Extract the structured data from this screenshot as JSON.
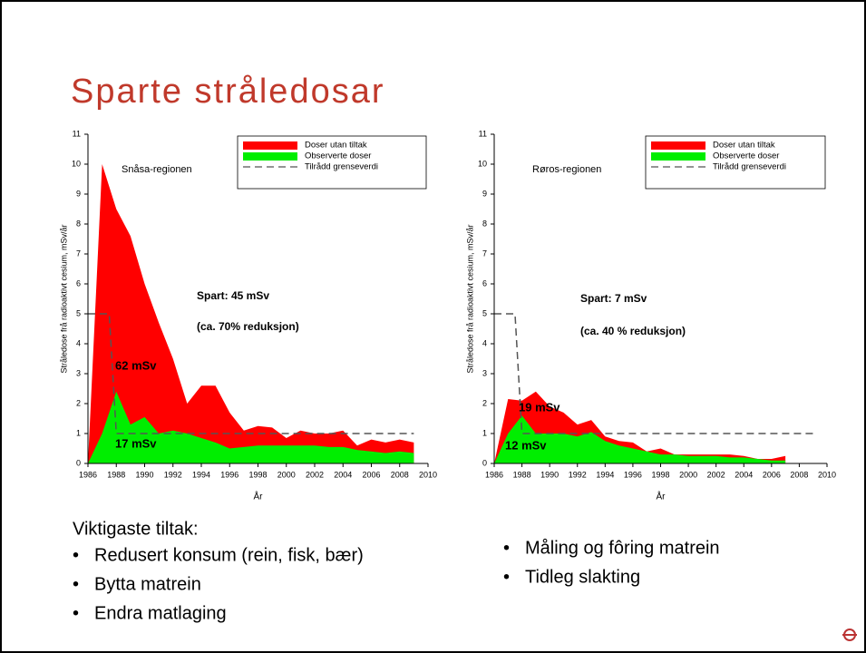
{
  "title": "Sparte stråledosar",
  "chart_data": [
    {
      "type": "area",
      "region": "Snåsa-regionen",
      "xlabel": "År",
      "ylabel": "Stråledose frå radioaktivt cesium, mSv/år",
      "x": [
        1986,
        1987,
        1988,
        1989,
        1990,
        1991,
        1992,
        1993,
        1994,
        1995,
        1996,
        1997,
        1998,
        1999,
        2000,
        2001,
        2002,
        2003,
        2004,
        2005,
        2006,
        2007,
        2008,
        2009
      ],
      "series": [
        {
          "name": "Doser utan tiltak",
          "color": "#ff0000",
          "style": "area",
          "values": [
            0,
            10,
            8.5,
            7.6,
            6,
            4.7,
            3.5,
            2.0,
            2.6,
            2.6,
            1.7,
            1.1,
            1.25,
            1.2,
            0.85,
            1.1,
            1.0,
            1.0,
            1.1,
            0.6,
            0.8,
            0.7,
            0.8,
            0.7
          ]
        },
        {
          "name": "Observerte doser",
          "color": "#00ee00",
          "style": "area",
          "values": [
            0,
            1.0,
            2.4,
            1.3,
            1.55,
            1.0,
            1.1,
            1.0,
            0.85,
            0.7,
            0.5,
            0.55,
            0.6,
            0.6,
            0.6,
            0.6,
            0.6,
            0.55,
            0.55,
            0.45,
            0.4,
            0.35,
            0.4,
            0.35
          ]
        },
        {
          "name": "Tilrådd grenseverdi",
          "color": "#555555",
          "style": "dashed",
          "x": [
            1986,
            1987.5,
            1988,
            2009
          ],
          "values": [
            5,
            5,
            1,
            1
          ]
        }
      ],
      "annotations": [
        "Spart: 45 mSv",
        "(ca. 70% reduksjon)",
        "62 mSv",
        "17 mSv"
      ],
      "xlim": [
        1986,
        2010
      ],
      "xticks": [
        1986,
        1988,
        1990,
        1992,
        1994,
        1996,
        1998,
        2000,
        2002,
        2004,
        2006,
        2008,
        2010
      ],
      "ylim": [
        0,
        11
      ],
      "yticks": [
        0,
        1,
        2,
        3,
        4,
        5,
        6,
        7,
        8,
        9,
        10,
        11
      ],
      "legend": "upper right"
    },
    {
      "type": "area",
      "region": "Røros-regionen",
      "xlabel": "År",
      "ylabel": "Stråledose frå radioaktivt cesium, mSv/år",
      "x": [
        1986,
        1987,
        1988,
        1989,
        1990,
        1991,
        1992,
        1993,
        1994,
        1995,
        1996,
        1997,
        1998,
        1999,
        2000,
        2001,
        2002,
        2003,
        2004,
        2005,
        2006,
        2007
      ],
      "series": [
        {
          "name": "Doser utan tiltak",
          "color": "#ff0000",
          "style": "area",
          "values": [
            0,
            2.15,
            2.1,
            2.4,
            1.9,
            1.7,
            1.3,
            1.45,
            0.9,
            0.75,
            0.7,
            0.4,
            0.5,
            0.3,
            0.3,
            0.3,
            0.3,
            0.3,
            0.25,
            0.15,
            0.15,
            0.25
          ]
        },
        {
          "name": "Observerte doser",
          "color": "#00ee00",
          "style": "area",
          "values": [
            0,
            1.0,
            1.6,
            1.0,
            1.0,
            1.0,
            0.9,
            1.05,
            0.75,
            0.6,
            0.5,
            0.4,
            0.3,
            0.3,
            0.25,
            0.25,
            0.25,
            0.2,
            0.2,
            0.15,
            0.1,
            0.1
          ]
        },
        {
          "name": "Tilrådd grenseverdi",
          "color": "#555555",
          "style": "dashed",
          "x": [
            1986,
            1987.5,
            1988,
            2009
          ],
          "values": [
            5,
            5,
            1,
            1
          ]
        }
      ],
      "annotations": [
        "Spart: 7 mSv",
        "(ca. 40 % reduksjon)",
        "19 mSv",
        "12 mSv"
      ],
      "xlim": [
        1986,
        2010
      ],
      "xticks": [
        1986,
        1988,
        1990,
        1992,
        1994,
        1996,
        1998,
        2000,
        2002,
        2004,
        2006,
        2008,
        2010
      ],
      "ylim": [
        0,
        11
      ],
      "yticks": [
        0,
        1,
        2,
        3,
        4,
        5,
        6,
        7,
        8,
        9,
        10,
        11
      ],
      "legend": "upper right"
    }
  ],
  "measures": {
    "heading": "Viktigaste tiltak:",
    "left": [
      "Redusert konsum (rein, fisk, bær)",
      "Bytta matrein",
      "Endra matlaging"
    ],
    "right": [
      "Måling og fôring matrein",
      "Tidleg slakting"
    ]
  }
}
